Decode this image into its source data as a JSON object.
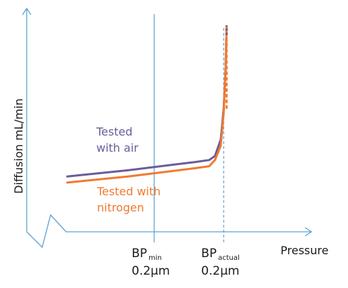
{
  "chart_data": {
    "type": "line",
    "title": "",
    "xlabel": "Pressure",
    "ylabel": "Diffusion mL/min",
    "xlim": [
      0,
      100
    ],
    "ylim": [
      0,
      100
    ],
    "grid": false,
    "legend": "inline",
    "series": [
      {
        "name_lines": [
          "Tested",
          "with air"
        ],
        "color": "#6a5c99",
        "points": [
          [
            14,
            27
          ],
          [
            35,
            30
          ],
          [
            58,
            34
          ],
          [
            63,
            35
          ],
          [
            65,
            37
          ],
          [
            67,
            45
          ],
          [
            68,
            60
          ],
          [
            68.7,
            80
          ],
          [
            69,
            100
          ]
        ]
      },
      {
        "name_lines": [
          "Tested with",
          "nitrogen"
        ],
        "color": "#f07a30",
        "points": [
          [
            14,
            24
          ],
          [
            35,
            27
          ],
          [
            58,
            31
          ],
          [
            63,
            32
          ],
          [
            65,
            35
          ],
          [
            67,
            42
          ],
          [
            68,
            58
          ],
          [
            68.7,
            80
          ],
          [
            69,
            100
          ]
        ]
      }
    ],
    "markers": [
      {
        "base": "BP",
        "sub": "min",
        "value": "0.2µm",
        "x": 44,
        "style": "solid"
      },
      {
        "base": "BP",
        "sub": "actual",
        "value": "0.2µm",
        "x": 68,
        "style": "dashed"
      }
    ],
    "axis_color": "#5aa3d3"
  }
}
